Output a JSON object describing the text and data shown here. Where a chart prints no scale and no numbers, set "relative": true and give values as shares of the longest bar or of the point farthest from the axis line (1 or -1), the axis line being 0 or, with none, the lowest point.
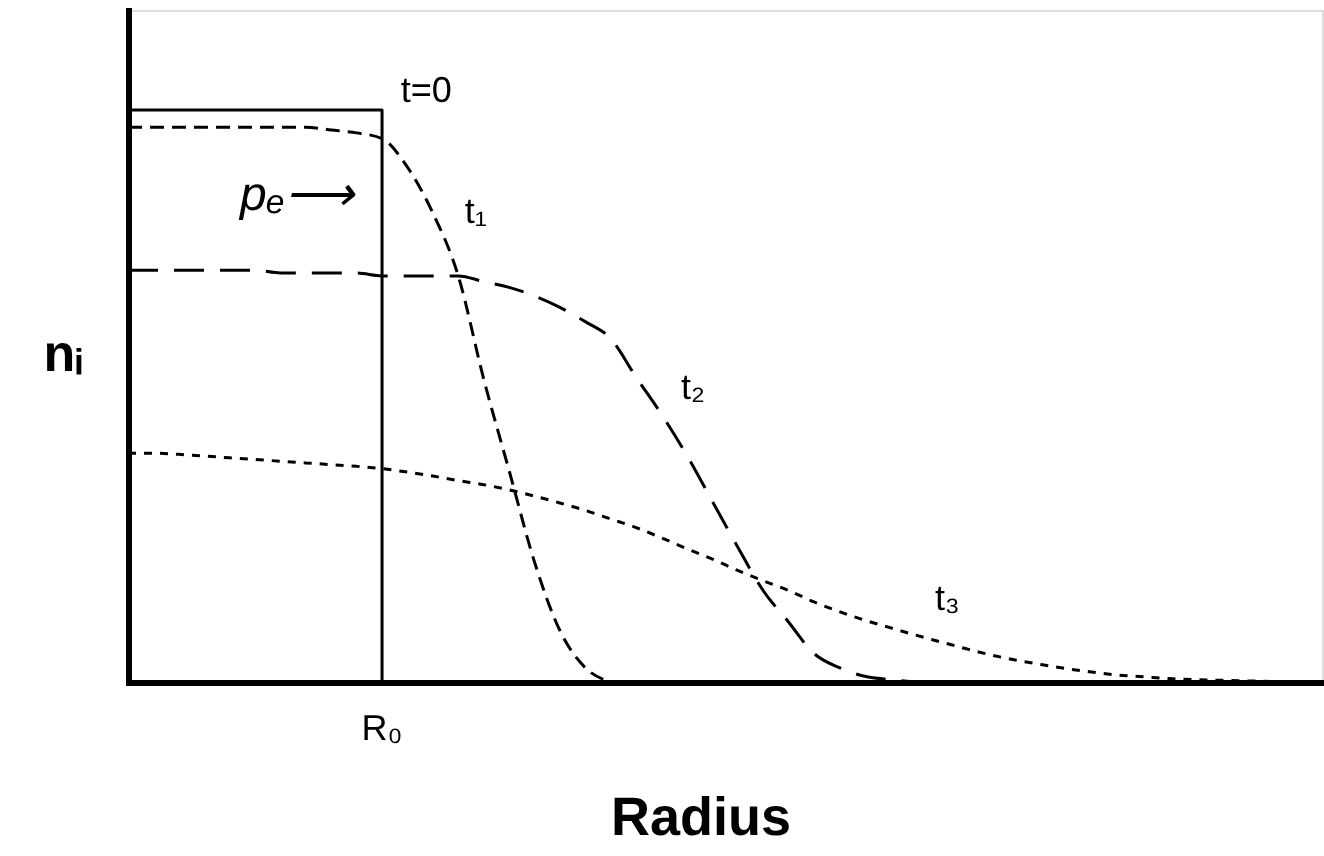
{
  "chart_data": {
    "type": "line",
    "relative": true,
    "xlabel": "Radius",
    "ylabel": "nᵢ",
    "categories": [
      null,
      null,
      null,
      null,
      null,
      null,
      null,
      null,
      null,
      null,
      null,
      null,
      null,
      null,
      null,
      null,
      null,
      null,
      null,
      null,
      null,
      null,
      null,
      null,
      null,
      null,
      null,
      null,
      null,
      null,
      null,
      null,
      null,
      null,
      null,
      null,
      null,
      null,
      null,
      null,
      null,
      null,
      null,
      null,
      null,
      null,
      null
    ],
    "series": [
      {
        "name": "t=0",
        "type": "step",
        "color": "#000000",
        "line_style": "solid",
        "values": [
          1,
          1,
          1,
          1,
          1,
          1,
          1,
          1,
          1,
          1,
          0,
          null,
          null,
          null,
          null,
          null,
          null,
          null,
          null,
          null,
          null,
          null,
          null,
          null,
          null,
          null,
          null,
          null,
          null,
          null,
          null,
          null,
          null,
          null,
          null,
          null,
          null,
          null,
          null,
          null,
          null,
          null,
          null,
          null,
          null,
          null,
          null
        ]
      },
      {
        "name": "t₁",
        "color": "#000000",
        "line_style": "dashed",
        "values": [
          0.97,
          0.97,
          0.97,
          0.97,
          0.97,
          0.97,
          0.97,
          0.97,
          0.965,
          0.96,
          0.95,
          0.9,
          0.82,
          0.71,
          0.53,
          0.37,
          0.21,
          0.09,
          0.025,
          0,
          null,
          null,
          null,
          null,
          null,
          null,
          null,
          null,
          null,
          null,
          null,
          null,
          null,
          null,
          null,
          null,
          null,
          null,
          null,
          null,
          null,
          null,
          null,
          null,
          null,
          null,
          null
        ]
      },
      {
        "name": "t₂",
        "color": "#000000",
        "line_style": "dashed",
        "values": [
          0.72,
          0.72,
          0.72,
          0.72,
          0.72,
          0.72,
          0.715,
          0.715,
          0.715,
          0.715,
          0.71,
          0.71,
          0.71,
          0.71,
          0.7,
          0.69,
          0.675,
          0.655,
          0.63,
          0.6,
          0.533,
          0.468,
          0.396,
          0.316,
          0.236,
          0.16,
          0.105,
          0.05,
          0.025,
          0.01,
          0.004,
          0,
          null,
          null,
          null,
          null,
          null,
          null,
          null,
          null,
          null,
          null,
          null,
          null,
          null,
          null,
          null
        ]
      },
      {
        "name": "t₃",
        "color": "#000000",
        "line_style": "dotted",
        "values": [
          0.4,
          0.4,
          0.398,
          0.395,
          0.392,
          0.389,
          0.386,
          0.383,
          0.38,
          0.377,
          0.373,
          0.367,
          0.36,
          0.352,
          0.345,
          0.336,
          0.325,
          0.313,
          0.3,
          0.285,
          0.27,
          0.252,
          0.233,
          0.215,
          0.195,
          0.177,
          0.16,
          0.14,
          0.123,
          0.108,
          0.095,
          0.082,
          0.07,
          0.058,
          0.047,
          0.038,
          0.03,
          0.023,
          0.017,
          0.012,
          0.009,
          0.006,
          0.004,
          0.003,
          0.002,
          0.001,
          0
        ]
      }
    ],
    "annotations": [
      "pₑ⟶",
      "R₀"
    ]
  }
}
